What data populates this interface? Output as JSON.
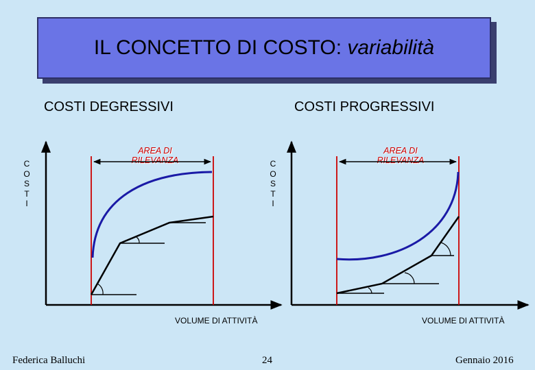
{
  "title": {
    "main": "IL CONCETTO DI COSTO: ",
    "emphasis": "variabilità"
  },
  "left_chart": {
    "heading": "COSTI DEGRESSIVI",
    "y_label_letters": [
      "C",
      "O",
      "S",
      "T",
      "I"
    ],
    "area_label_line1": "AREA DI",
    "area_label_line2": "RILEVANZA",
    "x_label": "VOLUME DI ATTIVITÀ"
  },
  "right_chart": {
    "heading": "COSTI PROGRESSIVI",
    "y_label_letters": [
      "C",
      "O",
      "S",
      "T",
      "I"
    ],
    "area_label_line1": "AREA DI",
    "area_label_line2": "RILEVANZA",
    "x_label": "VOLUME DI ATTIVITÀ"
  },
  "footer": {
    "author": "Federica Balluchi",
    "page": "24",
    "date": "Gennaio 2016"
  },
  "colors": {
    "background": "#cce6f6",
    "title_box": "#6a74e6",
    "curve": "#1a1aa6",
    "boundary": "#cc0000",
    "axis": "#000000"
  }
}
